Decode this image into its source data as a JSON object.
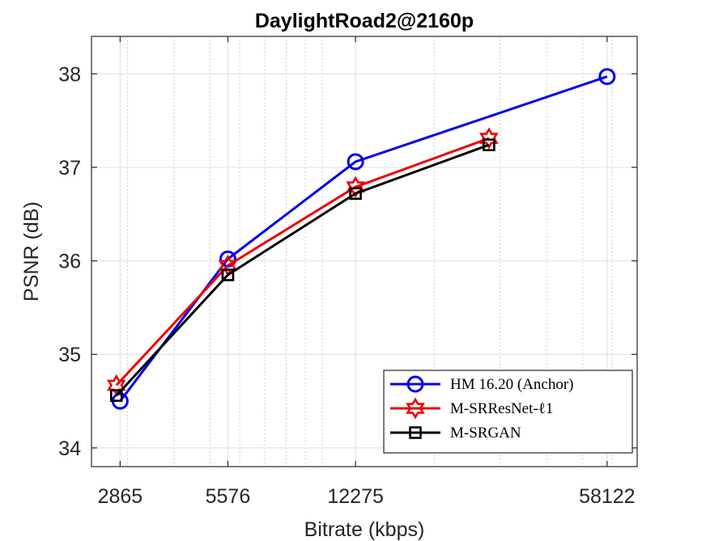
{
  "chart_data": {
    "type": "line",
    "title": "DaylightRoad2@2160p",
    "xlabel": "Bitrate (kbps)",
    "ylabel": "PSNR (dB)",
    "x_scale": "log",
    "xlim": [
      2400,
      70000
    ],
    "ylim": [
      33.8,
      38.4
    ],
    "xticks": [
      2865,
      5576,
      12275,
      58122
    ],
    "xtick_labels": [
      "2865",
      "5576",
      "12275",
      "58122"
    ],
    "yticks": [
      34,
      35,
      36,
      37,
      38
    ],
    "ytick_labels": [
      "34",
      "35",
      "36",
      "37",
      "38"
    ],
    "grid": true,
    "legend_position": "bottom-right",
    "series": [
      {
        "name": "HM 16.20 (Anchor)",
        "color": "#0000ee",
        "marker": "circle",
        "x": [
          2865,
          5576,
          12275,
          58122
        ],
        "y": [
          34.5,
          36.02,
          37.06,
          37.97
        ]
      },
      {
        "name": "M-SRResNet-ℓ1",
        "color": "#ee0000",
        "marker": "hexagram",
        "x": [
          2800,
          5576,
          12275,
          28000
        ],
        "y": [
          34.67,
          35.95,
          36.79,
          37.31
        ]
      },
      {
        "name": "M-SRGAN",
        "color": "#000000",
        "marker": "square",
        "x": [
          2800,
          5576,
          12275,
          28000
        ],
        "y": [
          34.56,
          35.85,
          36.72,
          37.24
        ]
      }
    ]
  }
}
